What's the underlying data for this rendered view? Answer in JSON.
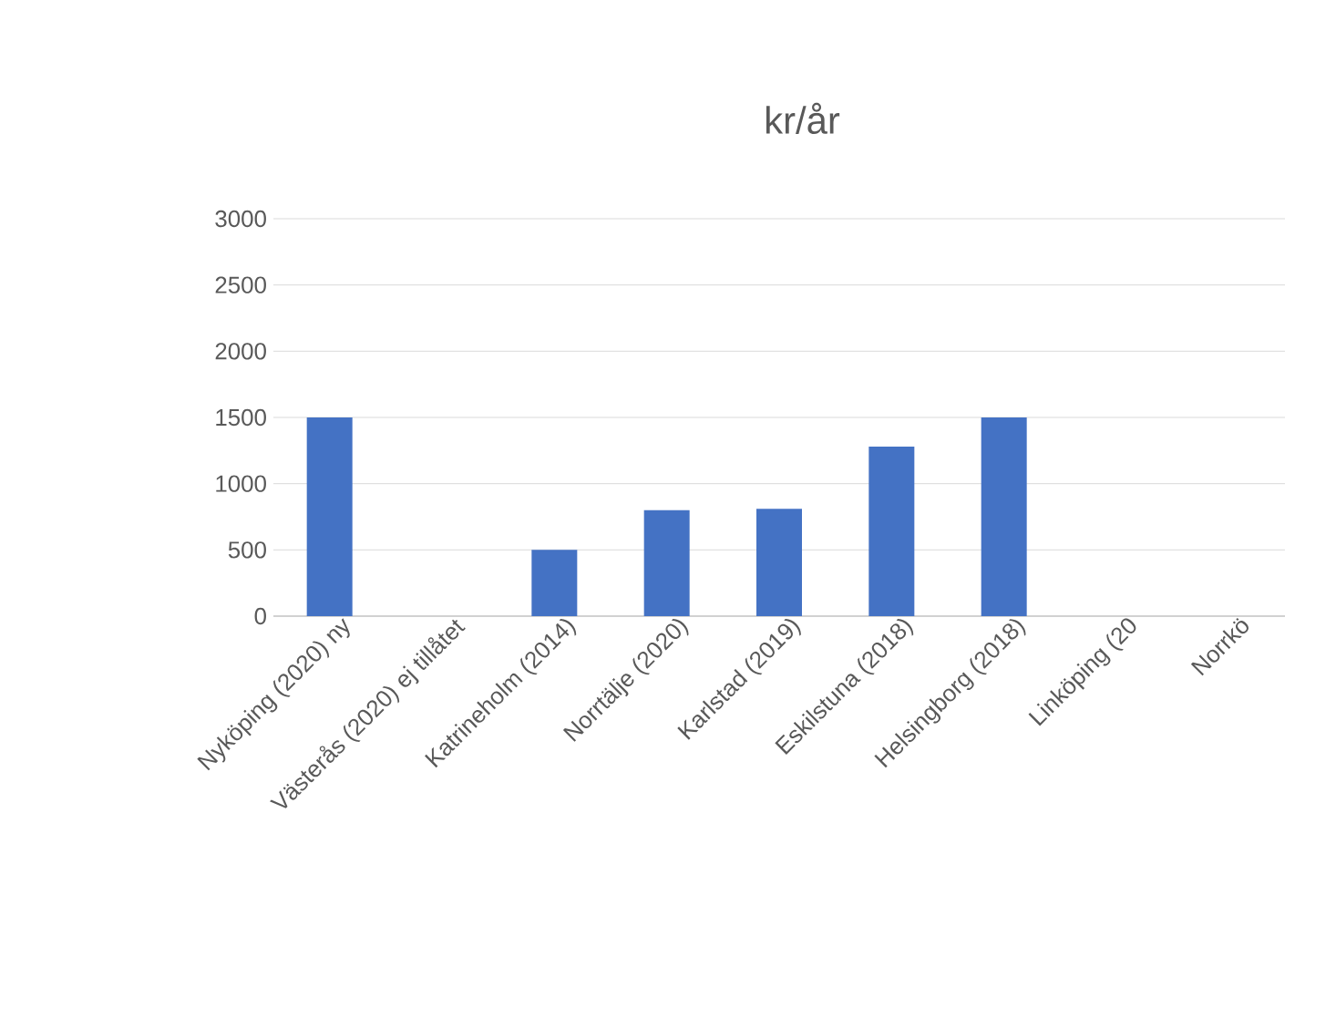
{
  "chart_data": {
    "type": "bar",
    "title": "kr/år",
    "categories": [
      "Nyköping (2020) ny",
      "Västerås (2020) ej tillåtet",
      "Katrineholm (2014)",
      "Norrtälje (2020)",
      "Karlstad (2019)",
      "Eskilstuna (2018)",
      "Helsingborg (2018)",
      "Linköping (20",
      "Norrkö"
    ],
    "values": [
      1500,
      0,
      500,
      800,
      810,
      1280,
      1500,
      null,
      null
    ],
    "color": "#4472c4",
    "ylim": [
      0,
      3000
    ],
    "yticks": [
      0,
      500,
      1000,
      1500,
      2000,
      2500,
      3000
    ],
    "grid": "y"
  }
}
